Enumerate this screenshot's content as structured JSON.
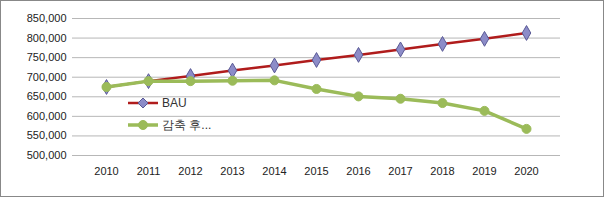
{
  "chart_data": {
    "type": "line",
    "categories": [
      "2010",
      "2011",
      "2012",
      "2013",
      "2014",
      "2015",
      "2016",
      "2017",
      "2018",
      "2019",
      "2020"
    ],
    "series": [
      {
        "name": "BAU",
        "color": "#b01c1c",
        "marker": "diamond",
        "values": [
          675000,
          690000,
          703000,
          717000,
          730000,
          744000,
          757000,
          771000,
          785000,
          798000,
          813000
        ]
      },
      {
        "name": "감축 후...",
        "color": "#9bbb59",
        "marker": "circle",
        "values": [
          675000,
          690000,
          690000,
          691000,
          692000,
          670000,
          651000,
          645000,
          634000,
          614000,
          568000
        ]
      }
    ],
    "ylim": [
      500000,
      850000
    ],
    "yticks": [
      {
        "value": 500000,
        "label": "500,000"
      },
      {
        "value": 550000,
        "label": "550,000"
      },
      {
        "value": 600000,
        "label": "600,000"
      },
      {
        "value": 650000,
        "label": "650,000"
      },
      {
        "value": 700000,
        "label": "700,000"
      },
      {
        "value": 750000,
        "label": "750,000"
      },
      {
        "value": 800000,
        "label": "800,000"
      },
      {
        "value": 850000,
        "label": "850,000"
      }
    ],
    "grid": true,
    "legend": "left"
  }
}
